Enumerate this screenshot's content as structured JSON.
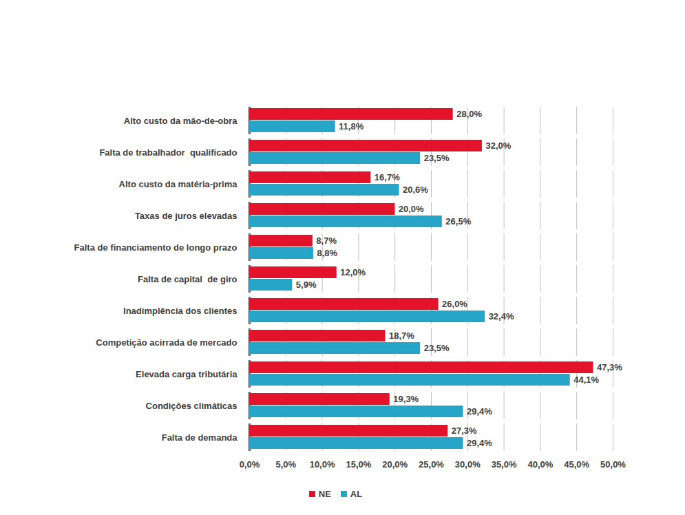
{
  "chart_data": {
    "type": "bar",
    "orientation": "horizontal",
    "data_labels": true,
    "grid": true,
    "legend": "bottom",
    "categories": [
      "Alto custo da mão-de-obra",
      "Falta de trabalhador  qualificado",
      "Alto custo da matéria-prima",
      "Taxas de juros elevadas",
      "Falta de financiamento de longo prazo",
      "Falta de capital  de giro",
      "Inadimplência dos clientes",
      "Competição acirrada de mercado",
      "Elevada carga tributária",
      "Condições climáticas",
      "Falta de demanda"
    ],
    "series": [
      {
        "name": "NE",
        "color": "#e3132b",
        "values": [
          28.0,
          32.0,
          16.7,
          20.0,
          8.7,
          12.0,
          26.0,
          18.7,
          47.3,
          19.3,
          27.3
        ],
        "value_labels": [
          "28,0%",
          "32,0%",
          "16,7%",
          "20,0%",
          "8,7%",
          "12,0%",
          "26,0%",
          "18,7%",
          "47,3%",
          "19,3%",
          "27,3%"
        ]
      },
      {
        "name": "AL",
        "color": "#27a5c8",
        "values": [
          11.8,
          23.5,
          20.6,
          26.5,
          8.8,
          5.9,
          32.4,
          23.5,
          44.1,
          29.4,
          29.4
        ],
        "value_labels": [
          "11,8%",
          "23,5%",
          "20,6%",
          "26,5%",
          "8,8%",
          "5,9%",
          "32,4%",
          "23,5%",
          "44,1%",
          "29,4%",
          "29,4%"
        ]
      }
    ],
    "xlim": [
      0,
      50
    ],
    "xticks": [
      {
        "value": 0,
        "label": "0,0%"
      },
      {
        "value": 5,
        "label": "5,0%"
      },
      {
        "value": 10,
        "label": "10,0%"
      },
      {
        "value": 15,
        "label": "15,0%"
      },
      {
        "value": 20,
        "label": "20,0%"
      },
      {
        "value": 25,
        "label": "25,0%"
      },
      {
        "value": 30,
        "label": "30,0%"
      },
      {
        "value": 35,
        "label": "35,0%"
      },
      {
        "value": 40,
        "label": "40,0%"
      },
      {
        "value": 45,
        "label": "45,0%"
      },
      {
        "value": 50,
        "label": "50,0%"
      }
    ]
  }
}
